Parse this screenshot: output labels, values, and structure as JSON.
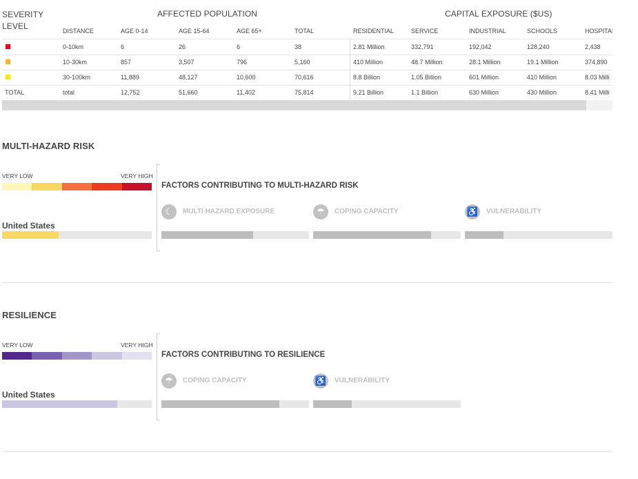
{
  "table": {
    "group_headers": {
      "severity": "SEVERITY\nLEVEL",
      "affected": "AFFECTED POPULATION",
      "capital": "CAPITAL EXPOSURE ($US)"
    },
    "columns": [
      "DISTANCE",
      "AGE 0-14",
      "AGE 15-64",
      "AGE 65+",
      "TOTAL",
      "RESIDENTIAL",
      "SERVICE",
      "INDUSTRIAL",
      "SCHOOLS",
      "HOSPITAL"
    ],
    "rows": [
      {
        "severity_color": "#e2001a",
        "cells": [
          "0-10km",
          "6",
          "26",
          "6",
          "38",
          "2.81 Million",
          "332,791",
          "192,042",
          "128,240",
          "2,438"
        ]
      },
      {
        "severity_color": "#f7b23b",
        "cells": [
          "10-30km",
          "857",
          "3,507",
          "796",
          "5,160",
          "410 Million",
          "48.7 Million",
          "28.1 Million",
          "19.1 Million",
          "374,890"
        ]
      },
      {
        "severity_color": "#f7e326",
        "cells": [
          "30-100km",
          "11,889",
          "48,127",
          "10,600",
          "70,616",
          "8.8 Billion",
          "1.05 Billion",
          "601 Million",
          "410 Million",
          "8.03 Milli"
        ]
      }
    ],
    "total_row": {
      "label": "TOTAL",
      "cells": [
        "total",
        "12,752",
        "51,660",
        "11,402",
        "75,814",
        "9.21 Billion",
        "1.1 Billion",
        "630 Million",
        "430 Million",
        "8.41 Milli"
      ]
    }
  },
  "multi_hazard": {
    "title": "MULTI-HAZARD RISK",
    "scale_low": "VERY LOW",
    "scale_high": "VERY HIGH",
    "scale_colors": [
      "#fef7b7",
      "#f8d765",
      "#f4703f",
      "#ec3c22",
      "#c4122b"
    ],
    "country": "United States",
    "country_level": 0.38,
    "country_color": "#f8d765",
    "factors_title": "FACTORS CONTRIBUTING TO MULTI-HAZARD RISK",
    "factors": [
      {
        "label": "MULTI HAZARD EXPOSURE",
        "icon": "hazard-exposure-icon",
        "value": 0.62
      },
      {
        "label": "COPING CAPACITY",
        "icon": "coping-capacity-icon",
        "value": 0.8
      },
      {
        "label": "VULNERABILITY",
        "icon": "vulnerability-icon",
        "value": 0.26
      }
    ]
  },
  "resilience": {
    "title": "RESILIENCE",
    "scale_low": "VERY LOW",
    "scale_high": "VERY HIGH",
    "scale_colors": [
      "#52298a",
      "#7b62b0",
      "#a297c8",
      "#cbc6e2",
      "#e2e0f1"
    ],
    "country": "United States",
    "country_level": 0.77,
    "country_color": "#cac6e2",
    "factors_title": "FACTORS CONTRIBUTING TO RESILIENCE",
    "factors": [
      {
        "label": "COPING CAPACITY",
        "icon": "coping-capacity-icon",
        "value": 0.8
      },
      {
        "label": "VULNERABILITY",
        "icon": "vulnerability-icon",
        "value": 0.26
      }
    ]
  }
}
